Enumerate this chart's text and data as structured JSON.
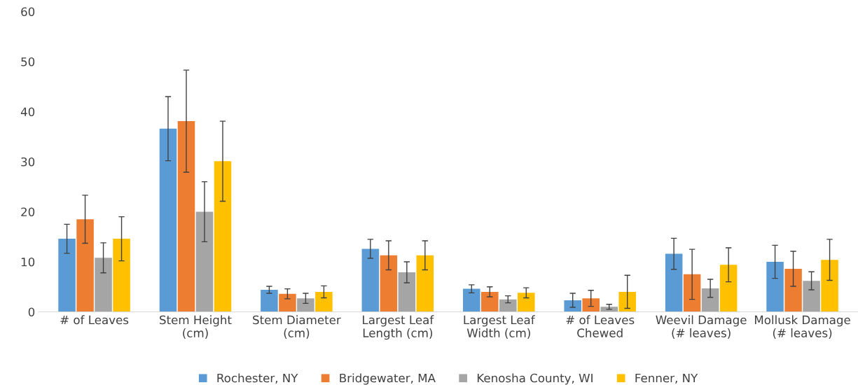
{
  "chart_data": {
    "type": "bar",
    "categories": [
      "# of Leaves",
      "Stem Height\n(cm)",
      "Stem Diameter\n(cm)",
      "Largest Leaf\nLength (cm)",
      "Largest Leaf\nWidth (cm)",
      "# of Leaves\nChewed",
      "Weevil Damage\n(# leaves)",
      "Mollusk Damage\n(# leaves)"
    ],
    "series": [
      {
        "name": "Rochester, NY",
        "color": "#5b9bd5",
        "values": [
          14.6,
          36.6,
          4.4,
          12.6,
          4.6,
          2.3,
          11.6,
          10.0
        ],
        "errors": [
          2.9,
          6.4,
          0.7,
          1.9,
          0.8,
          1.4,
          3.1,
          3.3
        ]
      },
      {
        "name": "Bridgewater, MA",
        "color": "#ed7d31",
        "values": [
          18.5,
          38.1,
          3.6,
          11.3,
          4.0,
          2.7,
          7.5,
          8.6
        ],
        "errors": [
          4.8,
          10.2,
          1.0,
          2.9,
          1.0,
          1.6,
          5.0,
          3.5
        ]
      },
      {
        "name": "Kenosha County, WI",
        "color": "#a5a5a5",
        "values": [
          10.8,
          20.0,
          2.7,
          7.9,
          2.5,
          1.0,
          4.7,
          6.2
        ],
        "errors": [
          3.0,
          6.0,
          1.0,
          2.1,
          0.7,
          0.5,
          1.8,
          1.8
        ]
      },
      {
        "name": "Fenner, NY",
        "color": "#ffc000",
        "values": [
          14.6,
          30.1,
          4.0,
          11.3,
          3.8,
          4.0,
          9.4,
          10.4
        ],
        "errors": [
          4.4,
          8.0,
          1.2,
          2.9,
          1.0,
          3.3,
          3.4,
          4.1
        ]
      }
    ],
    "ylim": [
      0,
      60
    ],
    "yticks": [
      0,
      10,
      20,
      30,
      40,
      50,
      60
    ],
    "grid": false,
    "legend": "bottom"
  }
}
